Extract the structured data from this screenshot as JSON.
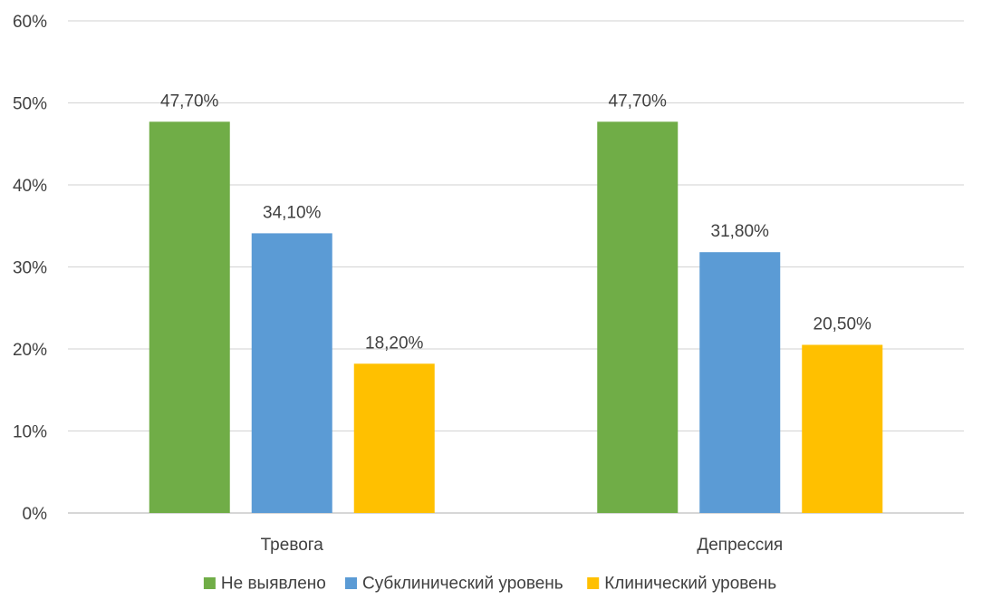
{
  "chart_data": {
    "type": "bar",
    "title": "",
    "xlabel": "",
    "ylabel": "",
    "categories": [
      "Тревога",
      "Депрессия"
    ],
    "series": [
      {
        "name": "Не выявлено",
        "color": "#70ad47",
        "values": [
          47.7,
          47.7
        ],
        "labels": [
          "47,70%",
          "47,70%"
        ]
      },
      {
        "name": "Субклинический уровень",
        "color": "#5b9bd5",
        "values": [
          34.1,
          31.8
        ],
        "labels": [
          "34,10%",
          "31,80%"
        ]
      },
      {
        "name": "Клинический уровень",
        "color": "#ffc000",
        "values": [
          18.2,
          20.5
        ],
        "labels": [
          "18,20%",
          "20,50%"
        ]
      }
    ],
    "ylim": [
      0,
      60
    ],
    "y_ticks": [
      0,
      10,
      20,
      30,
      40,
      50,
      60
    ],
    "y_tick_labels": [
      "0%",
      "10%",
      "20%",
      "30%",
      "40%",
      "50%",
      "60%"
    ],
    "grid": true,
    "legend_position": "bottom"
  }
}
